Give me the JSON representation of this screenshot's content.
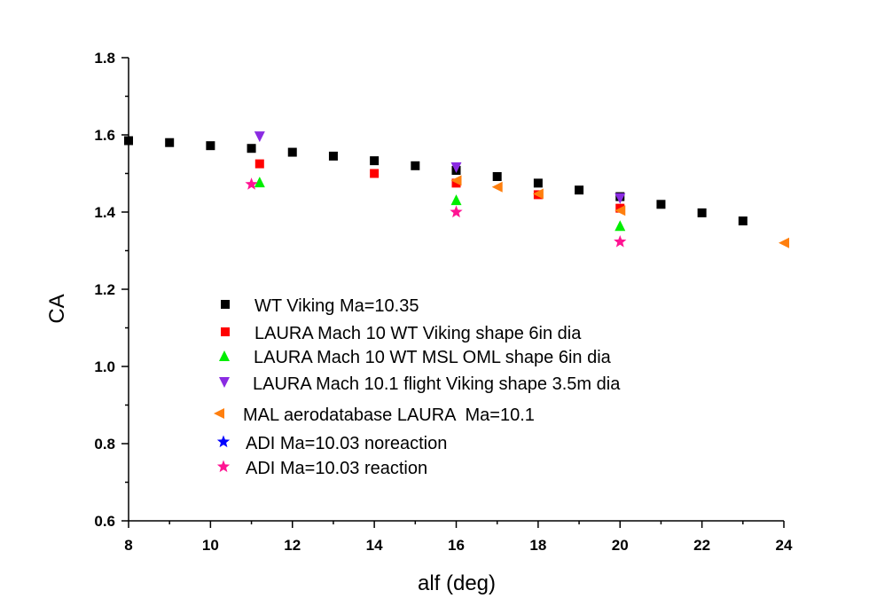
{
  "chart_data": {
    "type": "scatter",
    "title": "",
    "xlabel": "alf (deg)",
    "ylabel": "CA",
    "xlim": [
      8,
      24
    ],
    "ylim": [
      0.6,
      1.8
    ],
    "xticks": [
      "8",
      "10",
      "12",
      "14",
      "16",
      "18",
      "20",
      "22",
      "24"
    ],
    "yticks": [
      "0.6",
      "0.8",
      "1.0",
      "1.2",
      "1.4",
      "1.6",
      "1.8"
    ],
    "grid": false,
    "legend_position": "center-left",
    "series": [
      {
        "name": "WT Viking Ma=10.35",
        "marker": "square",
        "color": "#000000",
        "points": [
          [
            8,
            1.585
          ],
          [
            9,
            1.58
          ],
          [
            10,
            1.572
          ],
          [
            11,
            1.565
          ],
          [
            12,
            1.555
          ],
          [
            13,
            1.545
          ],
          [
            14,
            1.533
          ],
          [
            15,
            1.52
          ],
          [
            16,
            1.508
          ],
          [
            17,
            1.492
          ],
          [
            18,
            1.475
          ],
          [
            19,
            1.457
          ],
          [
            20,
            1.44
          ],
          [
            21,
            1.42
          ],
          [
            22,
            1.398
          ],
          [
            23,
            1.377
          ]
        ]
      },
      {
        "name": "LAURA Mach 10 WT Viking shape 6in dia",
        "marker": "square",
        "color": "#ff0000",
        "points": [
          [
            11.2,
            1.525
          ],
          [
            14,
            1.5
          ],
          [
            16,
            1.475
          ],
          [
            18,
            1.445
          ],
          [
            20,
            1.41
          ]
        ]
      },
      {
        "name": "LAURA Mach 10 WT MSL OML shape 6in dia",
        "marker": "triangle-up",
        "color": "#00ee00",
        "points": [
          [
            11.2,
            1.478
          ],
          [
            16,
            1.432
          ],
          [
            20,
            1.365
          ]
        ]
      },
      {
        "name": "LAURA Mach 10.1 flight Viking shape 3.5m dia",
        "marker": "triangle-down",
        "color": "#8a2be2",
        "points": [
          [
            11.2,
            1.595
          ],
          [
            16,
            1.515
          ],
          [
            20,
            1.435
          ]
        ]
      },
      {
        "name": "MAL aerodatabase LAURA  Ma=10.1",
        "marker": "triangle-left",
        "color": "#ff7f0e",
        "points": [
          [
            16,
            1.482
          ],
          [
            17,
            1.465
          ],
          [
            18,
            1.447
          ],
          [
            20,
            1.404
          ],
          [
            24,
            1.32
          ]
        ]
      },
      {
        "name": "ADI Ma=10.03 noreaction",
        "marker": "star",
        "color": "#0000ff",
        "points": []
      },
      {
        "name": "ADI Ma=10.03 reaction",
        "marker": "star",
        "color": "#ff1493",
        "points": [
          [
            11,
            1.472
          ],
          [
            16,
            1.4
          ],
          [
            20,
            1.323
          ]
        ]
      }
    ]
  }
}
